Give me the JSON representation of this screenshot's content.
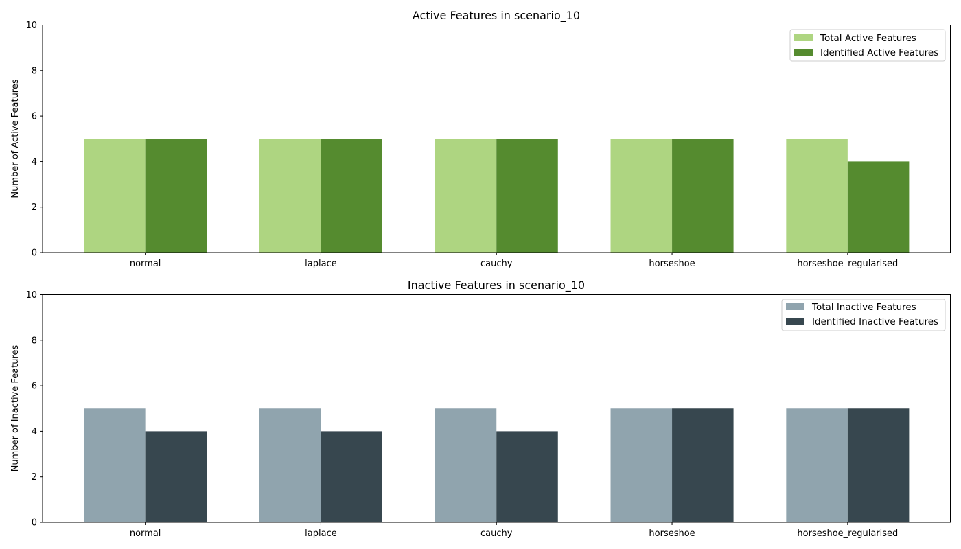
{
  "chart_data": [
    {
      "type": "bar",
      "title": "Active Features in scenario_10",
      "xlabel": "",
      "ylabel": "Number of Active Features",
      "categories": [
        "normal",
        "laplace",
        "cauchy",
        "horseshoe",
        "horseshoe_regularised"
      ],
      "series": [
        {
          "name": "Total Active Features",
          "values": [
            5,
            5,
            5,
            5,
            5
          ],
          "color": "#aed581"
        },
        {
          "name": "Identified Active Features",
          "values": [
            5,
            5,
            5,
            5,
            4
          ],
          "color": "#558b2f"
        }
      ],
      "ylim": [
        0,
        10
      ],
      "yticks": [
        0,
        2,
        4,
        6,
        8,
        10
      ],
      "grid": false,
      "legend_position": "top-right"
    },
    {
      "type": "bar",
      "title": "Inactive Features in scenario_10",
      "xlabel": "",
      "ylabel": "Number of Inactive Features",
      "categories": [
        "normal",
        "laplace",
        "cauchy",
        "horseshoe",
        "horseshoe_regularised"
      ],
      "series": [
        {
          "name": "Total Inactive Features",
          "values": [
            5,
            5,
            5,
            5,
            5
          ],
          "color": "#90a4ae"
        },
        {
          "name": "Identified Inactive Features",
          "values": [
            4,
            4,
            4,
            5,
            5
          ],
          "color": "#37474f"
        }
      ],
      "ylim": [
        0,
        10
      ],
      "yticks": [
        0,
        2,
        4,
        6,
        8,
        10
      ],
      "grid": false,
      "legend_position": "top-right"
    }
  ]
}
